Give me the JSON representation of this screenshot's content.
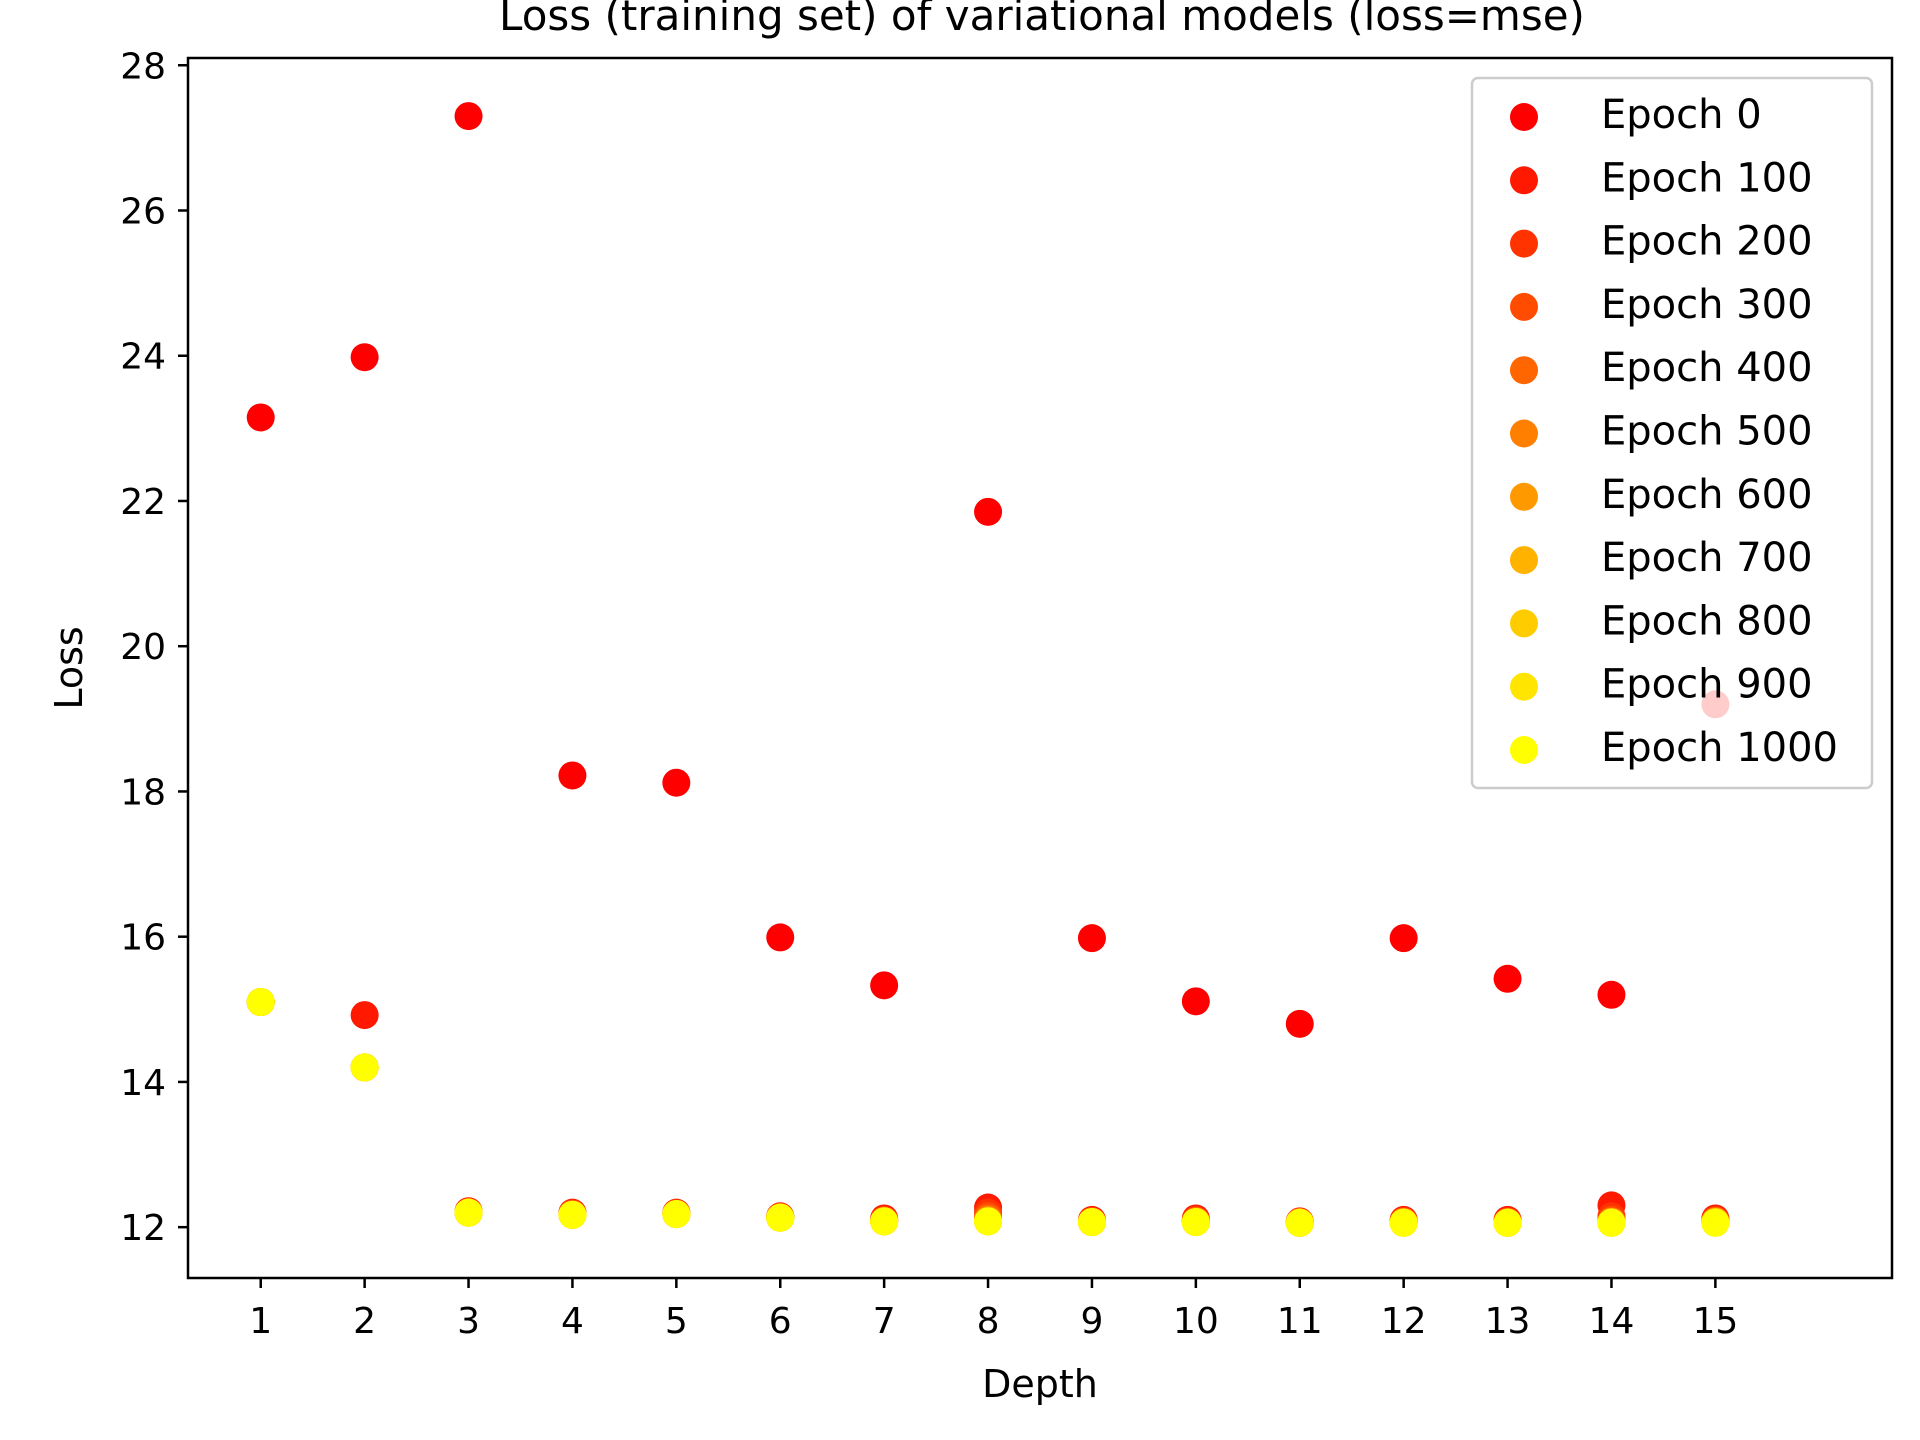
{
  "chart_data": {
    "type": "scatter",
    "title": "Loss (training set) of variational models (loss=mse)",
    "xlabel": "Depth",
    "ylabel": "Loss",
    "x": [
      1,
      2,
      3,
      4,
      5,
      6,
      7,
      8,
      9,
      10,
      11,
      12,
      13,
      14,
      15
    ],
    "xticks": [
      1,
      2,
      3,
      4,
      5,
      6,
      7,
      8,
      9,
      10,
      11,
      12,
      13,
      14,
      15
    ],
    "yticks": [
      12,
      14,
      16,
      18,
      20,
      22,
      24,
      26,
      28
    ],
    "xlim": [
      0.3,
      16.7
    ],
    "ylim": [
      11.3,
      28.1
    ],
    "grid": false,
    "legend_position": "top-right",
    "series": [
      {
        "name": "Epoch 0",
        "color": "#ff0000",
        "values": [
          23.15,
          23.98,
          27.3,
          18.22,
          18.12,
          15.99,
          15.33,
          21.85,
          15.98,
          15.11,
          14.8,
          15.98,
          15.42,
          15.2,
          19.2
        ]
      },
      {
        "name": "Epoch 100",
        "color": "#ff1900",
        "values": [
          15.1,
          14.92,
          12.22,
          12.2,
          12.2,
          12.15,
          12.12,
          12.27,
          12.1,
          12.12,
          12.08,
          12.1,
          12.1,
          12.3,
          12.12
        ]
      },
      {
        "name": "Epoch 200",
        "color": "#ff3300",
        "values": [
          15.1,
          14.2,
          12.21,
          12.19,
          12.19,
          12.14,
          12.1,
          12.2,
          12.08,
          12.1,
          12.07,
          12.08,
          12.08,
          12.15,
          12.1
        ]
      },
      {
        "name": "Epoch 300",
        "color": "#ff4c00",
        "values": [
          15.1,
          14.2,
          12.2,
          12.18,
          12.19,
          12.14,
          12.09,
          12.15,
          12.08,
          12.09,
          12.07,
          12.08,
          12.07,
          12.1,
          12.09
        ]
      },
      {
        "name": "Epoch 400",
        "color": "#ff6600",
        "values": [
          15.1,
          14.2,
          12.2,
          12.18,
          12.18,
          12.14,
          12.09,
          12.12,
          12.08,
          12.08,
          12.07,
          12.07,
          12.07,
          12.08,
          12.08
        ]
      },
      {
        "name": "Epoch 500",
        "color": "#ff7f00",
        "values": [
          15.1,
          14.2,
          12.2,
          12.17,
          12.18,
          12.13,
          12.08,
          12.1,
          12.07,
          12.08,
          12.06,
          12.07,
          12.07,
          12.07,
          12.08
        ]
      },
      {
        "name": "Epoch 600",
        "color": "#ff9900",
        "values": [
          15.1,
          14.2,
          12.2,
          12.17,
          12.18,
          12.13,
          12.08,
          12.09,
          12.07,
          12.07,
          12.06,
          12.07,
          12.06,
          12.07,
          12.07
        ]
      },
      {
        "name": "Epoch 700",
        "color": "#ffb200",
        "values": [
          15.1,
          14.2,
          12.2,
          12.17,
          12.18,
          12.13,
          12.08,
          12.08,
          12.07,
          12.07,
          12.06,
          12.06,
          12.06,
          12.07,
          12.07
        ]
      },
      {
        "name": "Epoch 800",
        "color": "#ffcc00",
        "values": [
          15.1,
          14.2,
          12.2,
          12.17,
          12.18,
          12.13,
          12.08,
          12.08,
          12.07,
          12.07,
          12.06,
          12.06,
          12.06,
          12.06,
          12.07
        ]
      },
      {
        "name": "Epoch 900",
        "color": "#ffe500",
        "values": [
          15.1,
          14.2,
          12.2,
          12.17,
          12.18,
          12.13,
          12.08,
          12.08,
          12.07,
          12.07,
          12.06,
          12.06,
          12.06,
          12.06,
          12.06
        ]
      },
      {
        "name": "Epoch 1000",
        "color": "#ffff00",
        "values": [
          15.1,
          14.2,
          12.2,
          12.17,
          12.18,
          12.13,
          12.08,
          12.08,
          12.07,
          12.07,
          12.06,
          12.06,
          12.06,
          12.06,
          12.06
        ]
      }
    ]
  }
}
